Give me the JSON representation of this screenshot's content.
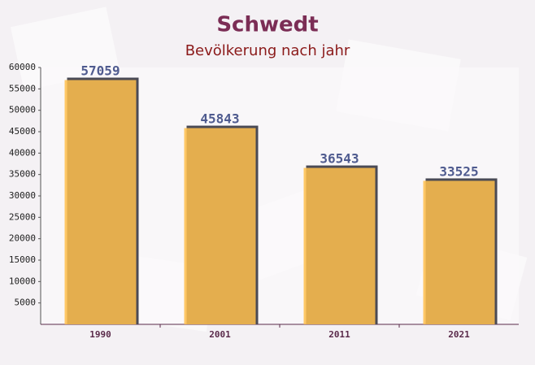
{
  "chart_data": {
    "type": "bar",
    "title": "Schwedt",
    "subtitle": "Bevölkerung nach jahr",
    "categories": [
      "1990",
      "2001",
      "2011",
      "2021"
    ],
    "values": [
      57059,
      45843,
      36543,
      33525
    ],
    "color": "#ffc04d",
    "ylim": [
      0,
      60000
    ],
    "yticks": [
      5000,
      10000,
      15000,
      20000,
      25000,
      30000,
      35000,
      40000,
      45000,
      50000,
      55000,
      60000
    ],
    "grid": false
  }
}
